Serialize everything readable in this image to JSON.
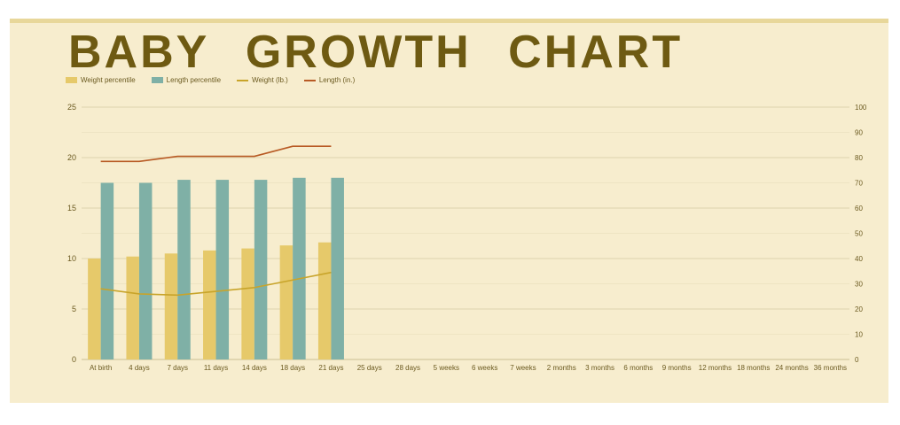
{
  "title": "BABY GROWTH CHART",
  "colors": {
    "background": "#f7edce",
    "top_band": "#e8d79a",
    "title": "#6e5a12",
    "weight_percentile": "#e6c96a",
    "length_percentile": "#7fb0a6",
    "weight_line": "#c8a42a",
    "length_line": "#b85a24",
    "grid": "#e6dcb8"
  },
  "legend": [
    {
      "label": "Weight percentile",
      "kind": "bar",
      "color": "#e6c96a"
    },
    {
      "label": "Length percentile",
      "kind": "bar",
      "color": "#7fb0a6"
    },
    {
      "label": "Weight (lb.)",
      "kind": "line",
      "color": "#c8a42a"
    },
    {
      "label": "Length (in.)",
      "kind": "line",
      "color": "#b85a24"
    }
  ],
  "chart_data": {
    "type": "bar",
    "categories": [
      "At birth",
      "4 days",
      "7 days",
      "11 days",
      "14 days",
      "18 days",
      "21 days",
      "25 days",
      "28 days",
      "5 weeks",
      "6 weeks",
      "7 weeks",
      "2 months",
      "3 months",
      "6 months",
      "9 months",
      "12 months",
      "18 months",
      "24 months",
      "36 months"
    ],
    "series": [
      {
        "name": "Weight percentile",
        "type": "bar",
        "axis": "left",
        "values": [
          10,
          10.2,
          10.5,
          10.8,
          11,
          11.3,
          11.6,
          null,
          null,
          null,
          null,
          null,
          null,
          null,
          null,
          null,
          null,
          null,
          null,
          null
        ]
      },
      {
        "name": "Length percentile",
        "type": "bar",
        "axis": "left",
        "values": [
          17.5,
          17.5,
          17.8,
          17.8,
          17.8,
          18,
          18,
          null,
          null,
          null,
          null,
          null,
          null,
          null,
          null,
          null,
          null,
          null,
          null,
          null
        ]
      },
      {
        "name": "Weight (lb.)",
        "type": "line",
        "axis": "right",
        "values": [
          28,
          26,
          25.5,
          27,
          28.5,
          31.5,
          34.5,
          null,
          null,
          null,
          null,
          null,
          null,
          null,
          null,
          null,
          null,
          null,
          null,
          null
        ]
      },
      {
        "name": "Length (in.)",
        "type": "line",
        "axis": "right",
        "values": [
          78.5,
          78.5,
          80.5,
          80.5,
          80.5,
          84.5,
          84.5,
          null,
          null,
          null,
          null,
          null,
          null,
          null,
          null,
          null,
          null,
          null,
          null,
          null
        ]
      }
    ],
    "ylim_left": [
      0,
      25
    ],
    "yticks_left": [
      0,
      5,
      10,
      15,
      20,
      25
    ],
    "ylim_right": [
      0,
      100
    ],
    "yticks_right": [
      0,
      10,
      20,
      30,
      40,
      50,
      60,
      70,
      80,
      90,
      100
    ],
    "grid": true,
    "legend_position": "top-left"
  }
}
